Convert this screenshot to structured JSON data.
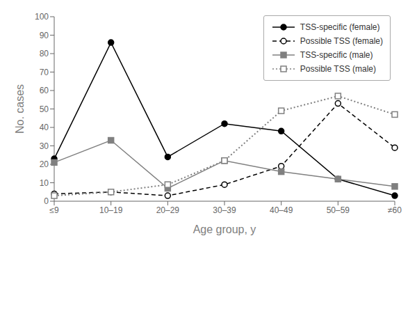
{
  "chart_data": {
    "type": "line",
    "categories": [
      "≤9",
      "10–19",
      "20–29",
      "30–39",
      "40–49",
      "50–59",
      "≠60"
    ],
    "series": [
      {
        "name": "TSS-specific (female)",
        "color": "#000000",
        "line_style": "solid",
        "marker": "circle",
        "values": [
          23,
          86,
          24,
          42,
          38,
          12,
          3
        ]
      },
      {
        "name": "Possible TSS (female)",
        "color": "#000000",
        "line_style": "dashed",
        "marker": "open_circle",
        "values": [
          4,
          5,
          3,
          9,
          19,
          53,
          29
        ]
      },
      {
        "name": "TSS-specific (male)",
        "color": "#808080",
        "line_style": "solid",
        "marker": "square",
        "values": [
          21,
          33,
          7,
          22,
          16,
          12,
          8
        ]
      },
      {
        "name": "Possible TSS (male)",
        "color": "#808080",
        "line_style": "dotted",
        "marker": "open_square",
        "values": [
          3,
          5,
          9,
          22,
          49,
          57,
          47
        ]
      }
    ],
    "xlabel": "Age group, y",
    "ylabel": "No. cases",
    "ylim": [
      0,
      100
    ],
    "yticks": [
      0,
      10,
      20,
      30,
      40,
      50,
      60,
      70,
      80,
      90,
      100
    ],
    "grid": false,
    "legend": "upper right"
  }
}
